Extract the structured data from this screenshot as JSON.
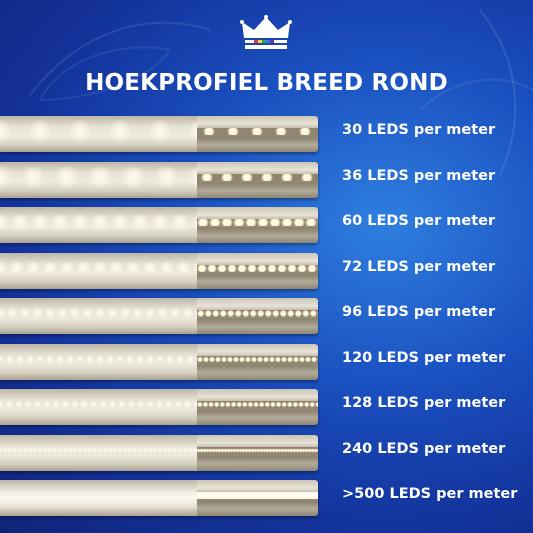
{
  "title": "HOEKPROFIEL BREED ROND",
  "colors": {
    "background": "#1a4fbf",
    "text": "#ffffff",
    "crown": "#ffffff",
    "led_glow": "#fff8e6"
  },
  "icons": {
    "logo": "crown-logo"
  },
  "rows": [
    {
      "label": "30 LEDS per meter",
      "leds_per_meter": 30
    },
    {
      "label": "36 LEDS per meter",
      "leds_per_meter": 36
    },
    {
      "label": "60 LEDS per meter",
      "leds_per_meter": 60
    },
    {
      "label": "72 LEDS per meter",
      "leds_per_meter": 72
    },
    {
      "label": "96 LEDS per meter",
      "leds_per_meter": 96
    },
    {
      "label": "120 LEDS per meter",
      "leds_per_meter": 120
    },
    {
      "label": "128 LEDS per meter",
      "leds_per_meter": 128
    },
    {
      "label": "240 LEDS per meter",
      "leds_per_meter": 240
    },
    {
      "label": ">500 LEDS per meter",
      "leds_per_meter": 500
    }
  ]
}
